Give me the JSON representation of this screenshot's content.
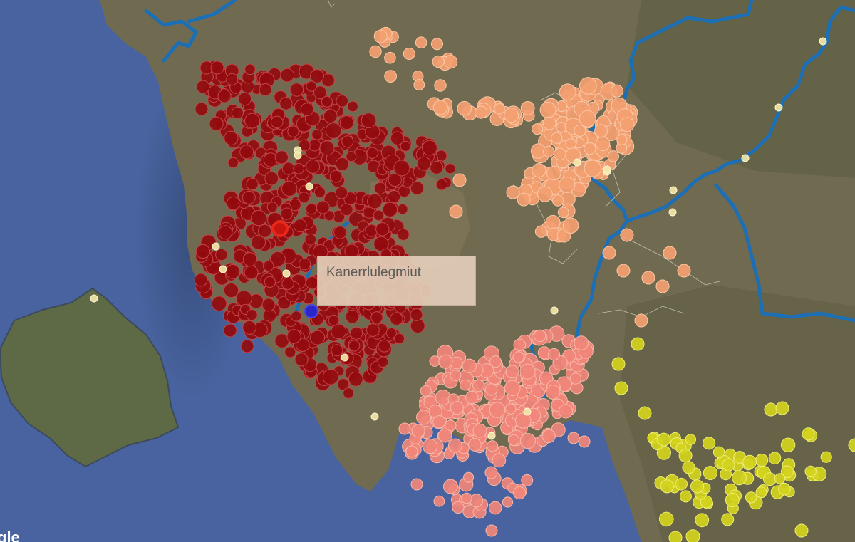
{
  "map": {
    "tooltip_label": "Kanerrlulegmiut",
    "attribution_text": "gle",
    "colors": {
      "ocean": "#48639f",
      "land": "#6f6a50",
      "island": "#5e6a45",
      "river": "#1d6fb5",
      "cluster_darkred": "#930b0e",
      "cluster_peach": "#f3a071",
      "cluster_salmon": "#f1857a",
      "cluster_yellow": "#d4d21d",
      "marker_pale": "#f2e6a8",
      "marker_selected": "#e8281c",
      "marker_blue": "#2a26c9"
    },
    "icons": [
      "pin-icon"
    ]
  }
}
